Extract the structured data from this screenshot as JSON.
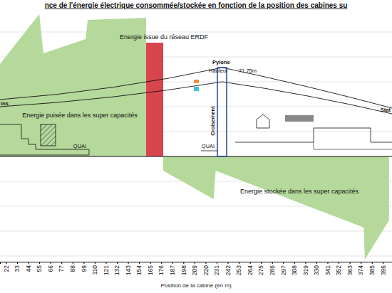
{
  "chart_data": {
    "type": "area",
    "title": "nce de l'énergie électrique consommée/stockée en fonction de la position des cabines su",
    "x_label": "Position de la cabine (en m)",
    "xlim": [
      16,
      405
    ],
    "xticks": [
      22,
      33,
      44,
      55,
      66,
      77,
      88,
      99,
      110,
      121,
      132,
      143,
      154,
      165,
      176,
      187,
      198,
      209,
      220,
      231,
      242,
      253,
      264,
      275,
      286,
      297,
      308,
      319,
      330,
      341,
      352,
      363,
      374,
      385,
      396
    ],
    "ylim": [
      -148,
      205
    ],
    "yticks": [
      -140,
      -105,
      -70,
      -35,
      0,
      35,
      70,
      105,
      140,
      175
    ],
    "grid": true,
    "tick_labels": "x",
    "series": [
      {
        "name": "Energie puisée dans les super capacités",
        "type": "area",
        "color": "#b5d89b",
        "x": [
          16,
          55,
          59,
          101,
          103,
          161
        ],
        "values": [
          130,
          200,
          145,
          165,
          192,
          195
        ]
      },
      {
        "name": "Energie stockée dans les super capacités",
        "type": "area",
        "color": "#b5d89b",
        "x": [
          178,
          228,
          230,
          377,
          378,
          402
        ],
        "values": [
          -20,
          -60,
          -20,
          -100,
          -145,
          -90
        ]
      },
      {
        "name": "Energie issue du réseau ERDF",
        "type": "area",
        "color": "#d9454f",
        "x": [
          161,
          178
        ],
        "values": [
          160,
          160
        ]
      }
    ],
    "annotations": [
      "Pylone",
      "Hauteur",
      "71.75m",
      "Croisement",
      "QUAI",
      "QUAI",
      "ins",
      "Stat"
    ]
  }
}
